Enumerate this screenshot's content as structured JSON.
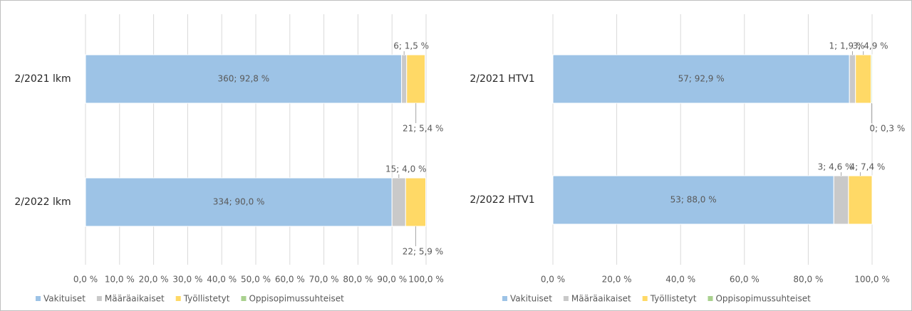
{
  "chart_data": [
    {
      "type": "stacked-bar-horizontal",
      "categories": [
        "2/2021 lkm",
        "2/2022 lkm"
      ],
      "series": [
        {
          "name": "Vakituiset",
          "color": "#9dc3e6",
          "values": [
            92.8,
            90.0
          ],
          "value_labels": [
            "360; 92,8 %",
            "334; 90,0 %"
          ]
        },
        {
          "name": "Määräaikaiset",
          "color": "#c9c9c9",
          "values": [
            1.5,
            4.0
          ],
          "value_labels": [
            "6; 1,5 %",
            "15; 4,0 %"
          ]
        },
        {
          "name": "Työllistetyt",
          "color": "#ffd966",
          "values": [
            5.4,
            5.9
          ],
          "value_labels": [
            "21; 5,4 %",
            "22; 5,9 %"
          ]
        },
        {
          "name": "Oppisopimussuhteiset",
          "color": "#a9d18e",
          "values": [
            0,
            0
          ]
        }
      ],
      "xlim": [
        0,
        100
      ],
      "xticks": [
        {
          "value": 0,
          "label": "0,0 %"
        },
        {
          "value": 10,
          "label": "10,0 %"
        },
        {
          "value": 20,
          "label": "20,0 %"
        },
        {
          "value": 30,
          "label": "30,0 %"
        },
        {
          "value": 40,
          "label": "40,0 %"
        },
        {
          "value": 50,
          "label": "50,0 %"
        },
        {
          "value": 60,
          "label": "60,0 %"
        },
        {
          "value": 70,
          "label": "70,0 %"
        },
        {
          "value": 80,
          "label": "80,0 %"
        },
        {
          "value": 90,
          "label": "90,0 %"
        },
        {
          "value": 100,
          "label": "100,0 %"
        }
      ],
      "grid": true,
      "legend": "bottom"
    },
    {
      "type": "stacked-bar-horizontal",
      "categories": [
        "2/2021 HTV1",
        "2/2022 HTV1"
      ],
      "series": [
        {
          "name": "Vakituiset",
          "color": "#9dc3e6",
          "values": [
            92.9,
            88.0
          ],
          "value_labels": [
            "57; 92,9 %",
            "53; 88,0 %"
          ]
        },
        {
          "name": "Määräaikaiset",
          "color": "#c9c9c9",
          "values": [
            1.9,
            4.6
          ],
          "value_labels": [
            "1; 1,9 %",
            "3; 4,6 %"
          ]
        },
        {
          "name": "Työllistetyt",
          "color": "#ffd966",
          "values": [
            4.9,
            7.4
          ],
          "value_labels": [
            "3; 4,9 %",
            "4; 7,4 %"
          ]
        },
        {
          "name": "Oppisopimussuhteiset",
          "color": "#a9d18e",
          "values": [
            0.3,
            0
          ],
          "value_labels": [
            "0; 0,3 %",
            null
          ]
        }
      ],
      "xlim": [
        0,
        100
      ],
      "xticks": [
        {
          "value": 0,
          "label": "0,0 %"
        },
        {
          "value": 20,
          "label": "20,0 %"
        },
        {
          "value": 40,
          "label": "40,0 %"
        },
        {
          "value": 60,
          "label": "60,0 %"
        },
        {
          "value": 80,
          "label": "80,0 %"
        },
        {
          "value": 100,
          "label": "100,0 %"
        }
      ],
      "grid": true,
      "legend": "bottom"
    }
  ]
}
